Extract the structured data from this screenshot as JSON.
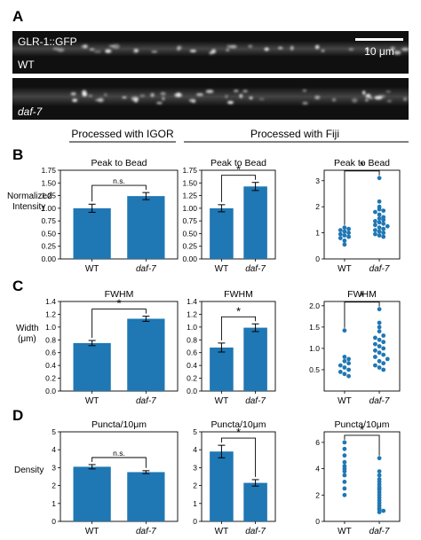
{
  "panel_a": {
    "letter": "A",
    "images": [
      {
        "top_label": "GLR-1::GFP",
        "label": "WT",
        "scale_bar_label": "10 μm"
      },
      {
        "label": "daf-7"
      }
    ]
  },
  "column_headers": {
    "left": "Processed with IGOR",
    "right": "Processed with Fiji"
  },
  "colors": {
    "bar": "#1f77b4",
    "dot": "#1f77b4",
    "image_bg": "#101010"
  },
  "rows": [
    {
      "letter": "B",
      "ylabel": [
        "Normalized",
        "Intensity"
      ]
    },
    {
      "letter": "C",
      "ylabel": [
        "Width",
        "(μm)"
      ]
    },
    {
      "letter": "D",
      "ylabel": [
        "Density"
      ]
    }
  ],
  "chart_data": [
    {
      "type": "bar",
      "title": "Peak to Bead",
      "categories": [
        "WT",
        "daf-7"
      ],
      "values": [
        1.0,
        1.24
      ],
      "errors": [
        0.08,
        0.07
      ],
      "ylim": [
        0,
        1.75
      ],
      "yticks": [
        "0.00",
        "0.25",
        "0.50",
        "0.75",
        "1.00",
        "1.25",
        "1.50",
        "1.75"
      ],
      "significance": "n.s."
    },
    {
      "type": "bar",
      "title": "Peak to Bead",
      "categories": [
        "WT",
        "daf-7"
      ],
      "values": [
        1.0,
        1.43
      ],
      "errors": [
        0.07,
        0.08
      ],
      "ylim": [
        0,
        1.75
      ],
      "yticks": [
        "0.00",
        "0.25",
        "0.50",
        "0.75",
        "1.00",
        "1.25",
        "1.50",
        "1.75"
      ],
      "significance": "*"
    },
    {
      "type": "scatter",
      "title": "Peak to Bead",
      "categories": [
        "WT",
        "daf-7"
      ],
      "ylim": [
        0,
        3.4
      ],
      "yticks": [
        "0",
        "1",
        "2",
        "3"
      ],
      "significance": "*",
      "points": [
        [
          1.2,
          1.15,
          1.1,
          1.05,
          1.0,
          0.95,
          0.9,
          0.85,
          0.8,
          0.7,
          0.55
        ],
        [
          3.1,
          2.2,
          2.0,
          1.9,
          1.85,
          1.8,
          1.7,
          1.6,
          1.55,
          1.5,
          1.45,
          1.4,
          1.35,
          1.3,
          1.25,
          1.2,
          1.15,
          1.1,
          1.05,
          1.0,
          0.95,
          0.9,
          0.85
        ]
      ]
    },
    {
      "type": "bar",
      "title": "FWHM",
      "categories": [
        "WT",
        "daf-7"
      ],
      "values": [
        0.75,
        1.13
      ],
      "errors": [
        0.04,
        0.04
      ],
      "ylim": [
        0,
        1.4
      ],
      "yticks": [
        "0.0",
        "0.2",
        "0.4",
        "0.6",
        "0.8",
        "1.0",
        "1.2",
        "1.4"
      ],
      "significance": "*"
    },
    {
      "type": "bar",
      "title": "FWHM",
      "categories": [
        "WT",
        "daf-7"
      ],
      "values": [
        0.68,
        0.99
      ],
      "errors": [
        0.07,
        0.06
      ],
      "ylim": [
        0,
        1.4
      ],
      "yticks": [
        "0.0",
        "0.2",
        "0.4",
        "0.6",
        "0.8",
        "1.0",
        "1.2",
        "1.4"
      ],
      "significance": "*"
    },
    {
      "type": "scatter",
      "title": "FWHM",
      "categories": [
        "WT",
        "daf-7"
      ],
      "ylim": [
        0,
        2.1
      ],
      "yticks": [
        "0.5",
        "1.0",
        "1.5",
        "2.0"
      ],
      "significance": "*",
      "points": [
        [
          1.42,
          0.8,
          0.75,
          0.7,
          0.65,
          0.6,
          0.55,
          0.5,
          0.45,
          0.4,
          0.35
        ],
        [
          1.92,
          1.6,
          1.5,
          1.4,
          1.3,
          1.25,
          1.2,
          1.15,
          1.1,
          1.05,
          1.0,
          0.95,
          0.9,
          0.85,
          0.8,
          0.75,
          0.7,
          0.65,
          0.6,
          0.55,
          0.5
        ]
      ]
    },
    {
      "type": "bar",
      "title": "Puncta/10μm",
      "categories": [
        "WT",
        "daf-7"
      ],
      "values": [
        3.05,
        2.75
      ],
      "errors": [
        0.12,
        0.08
      ],
      "ylim": [
        0,
        5
      ],
      "yticks": [
        "0",
        "1",
        "2",
        "3",
        "4",
        "5"
      ],
      "significance": "n.s."
    },
    {
      "type": "bar",
      "title": "Puncta/10μm",
      "categories": [
        "WT",
        "daf-7"
      ],
      "values": [
        3.9,
        2.15
      ],
      "errors": [
        0.35,
        0.18
      ],
      "ylim": [
        0,
        5
      ],
      "yticks": [
        "0",
        "1",
        "2",
        "3",
        "4",
        "5"
      ],
      "significance": "*"
    },
    {
      "type": "scatter",
      "title": "Puncta/10μm",
      "categories": [
        "WT",
        "daf-7"
      ],
      "ylim": [
        0,
        6.8
      ],
      "yticks": [
        "0",
        "2",
        "4",
        "6"
      ],
      "significance": "*",
      "points": [
        [
          6.0,
          5.5,
          5.0,
          4.5,
          4.2,
          4.0,
          3.8,
          3.5,
          3.0,
          2.5,
          2.0
        ],
        [
          4.8,
          3.8,
          3.5,
          3.2,
          3.0,
          2.8,
          2.6,
          2.5,
          2.4,
          2.2,
          2.0,
          1.8,
          1.6,
          1.4,
          1.2,
          1.0,
          0.9,
          0.8,
          0.7
        ]
      ]
    }
  ]
}
